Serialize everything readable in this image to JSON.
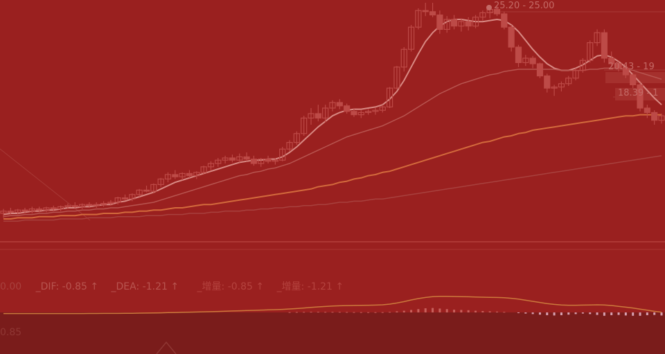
{
  "colors": {
    "background": "#9a201f",
    "bottom_panel": "#7a1c1b",
    "candle": "#bd4a47",
    "ma5": "#d98a84",
    "ma10": "#b85550",
    "ma20": "#d36a3c",
    "ma60": "#a8413e",
    "label": "#c46a66",
    "macd_bar_up": "#c7605c",
    "macd_bar_down": "#d6a0b0"
  },
  "price_labels": {
    "high": "25.20 - 25.00",
    "mid": "20.43 - 19",
    "low": "18.39 - 1"
  },
  "indicator_bar": {
    "prefix": "0.00",
    "dif_label": "_DIF: -0.85",
    "dea_label": "_DEA: -1.21",
    "cn1_label": "_增量: -0.85",
    "cn2_label": "_增量: -1.21",
    "arrow": "↑"
  },
  "bottom_panel": {
    "value": "0.85"
  },
  "chart_data": {
    "type": "line",
    "title": "",
    "xlabel": "",
    "ylabel": "",
    "ylim": [
      4.5,
      26
    ],
    "grid": false,
    "candles": [
      {
        "o": 7.0,
        "h": 7.4,
        "l": 6.6,
        "c": 7.2
      },
      {
        "o": 7.2,
        "h": 7.5,
        "l": 6.9,
        "c": 7.1
      },
      {
        "o": 7.1,
        "h": 7.4,
        "l": 6.9,
        "c": 7.3
      },
      {
        "o": 7.3,
        "h": 7.5,
        "l": 7.0,
        "c": 7.2
      },
      {
        "o": 7.2,
        "h": 7.6,
        "l": 7.0,
        "c": 7.4
      },
      {
        "o": 7.4,
        "h": 7.6,
        "l": 7.1,
        "c": 7.3
      },
      {
        "o": 7.3,
        "h": 7.6,
        "l": 7.1,
        "c": 7.5
      },
      {
        "o": 7.5,
        "h": 7.7,
        "l": 7.2,
        "c": 7.4
      },
      {
        "o": 7.4,
        "h": 7.7,
        "l": 7.2,
        "c": 7.6
      },
      {
        "o": 7.6,
        "h": 7.9,
        "l": 7.4,
        "c": 7.7
      },
      {
        "o": 7.7,
        "h": 8.0,
        "l": 7.4,
        "c": 7.6
      },
      {
        "o": 7.6,
        "h": 7.9,
        "l": 7.4,
        "c": 7.8
      },
      {
        "o": 7.8,
        "h": 8.0,
        "l": 7.5,
        "c": 7.7
      },
      {
        "o": 7.7,
        "h": 8.0,
        "l": 7.5,
        "c": 7.8
      },
      {
        "o": 7.8,
        "h": 8.1,
        "l": 7.6,
        "c": 7.9
      },
      {
        "o": 7.9,
        "h": 8.2,
        "l": 7.7,
        "c": 8.0
      },
      {
        "o": 8.0,
        "h": 8.5,
        "l": 7.8,
        "c": 8.4
      },
      {
        "o": 8.4,
        "h": 8.7,
        "l": 8.2,
        "c": 8.3
      },
      {
        "o": 8.3,
        "h": 8.8,
        "l": 8.1,
        "c": 8.7
      },
      {
        "o": 8.7,
        "h": 9.2,
        "l": 8.5,
        "c": 9.1
      },
      {
        "o": 9.1,
        "h": 9.5,
        "l": 8.9,
        "c": 9.0
      },
      {
        "o": 9.0,
        "h": 9.7,
        "l": 8.8,
        "c": 9.6
      },
      {
        "o": 9.6,
        "h": 10.2,
        "l": 9.4,
        "c": 10.1
      },
      {
        "o": 10.1,
        "h": 10.7,
        "l": 9.8,
        "c": 10.5
      },
      {
        "o": 10.5,
        "h": 10.9,
        "l": 10.1,
        "c": 10.3
      },
      {
        "o": 10.3,
        "h": 10.7,
        "l": 10.0,
        "c": 10.6
      },
      {
        "o": 10.6,
        "h": 10.9,
        "l": 10.2,
        "c": 10.4
      },
      {
        "o": 10.4,
        "h": 10.8,
        "l": 10.1,
        "c": 10.7
      },
      {
        "o": 10.7,
        "h": 11.3,
        "l": 10.5,
        "c": 11.2
      },
      {
        "o": 11.2,
        "h": 11.7,
        "l": 10.9,
        "c": 11.5
      },
      {
        "o": 11.5,
        "h": 12.0,
        "l": 11.2,
        "c": 11.8
      },
      {
        "o": 11.8,
        "h": 12.2,
        "l": 11.5,
        "c": 12.0
      },
      {
        "o": 12.0,
        "h": 12.3,
        "l": 11.6,
        "c": 11.8
      },
      {
        "o": 11.8,
        "h": 12.4,
        "l": 11.6,
        "c": 12.1
      },
      {
        "o": 12.1,
        "h": 12.5,
        "l": 11.7,
        "c": 11.9
      },
      {
        "o": 11.9,
        "h": 12.2,
        "l": 11.3,
        "c": 11.5
      },
      {
        "o": 11.5,
        "h": 12.0,
        "l": 11.2,
        "c": 11.9
      },
      {
        "o": 11.9,
        "h": 12.2,
        "l": 11.5,
        "c": 11.7
      },
      {
        "o": 11.7,
        "h": 12.0,
        "l": 11.4,
        "c": 11.8
      },
      {
        "o": 11.8,
        "h": 13.0,
        "l": 11.7,
        "c": 12.8
      },
      {
        "o": 12.8,
        "h": 13.6,
        "l": 12.6,
        "c": 13.4
      },
      {
        "o": 13.4,
        "h": 14.4,
        "l": 13.2,
        "c": 14.2
      },
      {
        "o": 14.2,
        "h": 15.8,
        "l": 14.0,
        "c": 15.6
      },
      {
        "o": 15.6,
        "h": 16.5,
        "l": 15.0,
        "c": 16.0
      },
      {
        "o": 16.0,
        "h": 16.8,
        "l": 15.3,
        "c": 15.6
      },
      {
        "o": 15.6,
        "h": 16.8,
        "l": 15.2,
        "c": 16.5
      },
      {
        "o": 16.5,
        "h": 17.2,
        "l": 16.2,
        "c": 17.0
      },
      {
        "o": 17.0,
        "h": 17.3,
        "l": 16.4,
        "c": 16.7
      },
      {
        "o": 16.7,
        "h": 16.9,
        "l": 16.0,
        "c": 16.2
      },
      {
        "o": 16.2,
        "h": 16.5,
        "l": 15.7,
        "c": 15.9
      },
      {
        "o": 15.9,
        "h": 16.3,
        "l": 15.6,
        "c": 16.1
      },
      {
        "o": 16.1,
        "h": 16.4,
        "l": 15.9,
        "c": 16.2
      },
      {
        "o": 16.2,
        "h": 16.5,
        "l": 15.9,
        "c": 16.3
      },
      {
        "o": 16.3,
        "h": 16.8,
        "l": 16.1,
        "c": 16.6
      },
      {
        "o": 16.6,
        "h": 18.4,
        "l": 16.5,
        "c": 18.3
      },
      {
        "o": 18.3,
        "h": 20.3,
        "l": 18.2,
        "c": 20.2
      },
      {
        "o": 20.2,
        "h": 22.0,
        "l": 19.8,
        "c": 21.8
      },
      {
        "o": 21.8,
        "h": 24.0,
        "l": 21.6,
        "c": 23.8
      },
      {
        "o": 23.8,
        "h": 25.5,
        "l": 23.6,
        "c": 25.3
      },
      {
        "o": 25.3,
        "h": 26.0,
        "l": 24.8,
        "c": 25.2
      },
      {
        "o": 25.2,
        "h": 26.0,
        "l": 24.7,
        "c": 24.9
      },
      {
        "o": 24.9,
        "h": 25.3,
        "l": 23.2,
        "c": 23.6
      },
      {
        "o": 23.6,
        "h": 24.8,
        "l": 23.3,
        "c": 24.5
      },
      {
        "o": 24.5,
        "h": 24.9,
        "l": 23.6,
        "c": 23.9
      },
      {
        "o": 23.9,
        "h": 24.6,
        "l": 23.4,
        "c": 24.3
      },
      {
        "o": 24.3,
        "h": 24.7,
        "l": 23.5,
        "c": 23.9
      },
      {
        "o": 23.9,
        "h": 24.9,
        "l": 23.7,
        "c": 24.7
      },
      {
        "o": 24.7,
        "h": 25.3,
        "l": 24.4,
        "c": 25.1
      },
      {
        "o": 25.1,
        "h": 25.6,
        "l": 24.6,
        "c": 25.4
      },
      {
        "o": 25.4,
        "h": 25.8,
        "l": 24.8,
        "c": 25.0
      },
      {
        "o": 25.0,
        "h": 25.2,
        "l": 23.6,
        "c": 23.8
      },
      {
        "o": 23.8,
        "h": 24.0,
        "l": 21.6,
        "c": 22.0
      },
      {
        "o": 22.0,
        "h": 22.2,
        "l": 20.2,
        "c": 20.6
      },
      {
        "o": 20.6,
        "h": 21.3,
        "l": 20.3,
        "c": 21.0
      },
      {
        "o": 21.0,
        "h": 21.2,
        "l": 20.1,
        "c": 20.5
      },
      {
        "o": 20.5,
        "h": 20.6,
        "l": 19.2,
        "c": 19.4
      },
      {
        "o": 19.4,
        "h": 19.6,
        "l": 17.9,
        "c": 18.3
      },
      {
        "o": 18.3,
        "h": 18.6,
        "l": 17.6,
        "c": 18.4
      },
      {
        "o": 18.4,
        "h": 18.9,
        "l": 18.0,
        "c": 18.7
      },
      {
        "o": 18.7,
        "h": 19.4,
        "l": 18.5,
        "c": 19.2
      },
      {
        "o": 19.2,
        "h": 20.1,
        "l": 19.0,
        "c": 19.9
      },
      {
        "o": 19.9,
        "h": 21.0,
        "l": 19.7,
        "c": 20.8
      },
      {
        "o": 20.8,
        "h": 22.6,
        "l": 20.6,
        "c": 22.4
      },
      {
        "o": 22.4,
        "h": 23.6,
        "l": 22.1,
        "c": 23.3
      },
      {
        "o": 23.3,
        "h": 23.6,
        "l": 20.6,
        "c": 21.0
      },
      {
        "o": 21.0,
        "h": 21.6,
        "l": 20.2,
        "c": 20.5
      },
      {
        "o": 20.5,
        "h": 20.7,
        "l": 19.8,
        "c": 20.1
      },
      {
        "o": 20.1,
        "h": 20.4,
        "l": 19.2,
        "c": 19.5
      },
      {
        "o": 19.5,
        "h": 19.6,
        "l": 18.3,
        "c": 18.6
      },
      {
        "o": 18.6,
        "h": 18.8,
        "l": 16.2,
        "c": 16.5
      },
      {
        "o": 16.5,
        "h": 16.8,
        "l": 15.6,
        "c": 16.1
      },
      {
        "o": 16.1,
        "h": 16.3,
        "l": 15.0,
        "c": 15.4
      },
      {
        "o": 15.4,
        "h": 16.0,
        "l": 15.1,
        "c": 15.8
      }
    ],
    "series": [
      {
        "values": [
          6.9,
          7.0,
          7.0,
          7.1,
          7.2,
          7.2,
          7.3,
          7.3,
          7.4,
          7.5,
          7.5,
          7.6,
          7.6,
          7.7,
          7.8,
          7.8,
          8.0,
          8.1,
          8.3,
          8.5,
          8.7,
          8.9,
          9.2,
          9.5,
          9.8,
          10.0,
          10.2,
          10.4,
          10.6,
          10.8,
          11.0,
          11.2,
          11.4,
          11.6,
          11.7,
          11.8,
          11.8,
          11.9,
          11.9,
          12.1,
          12.5,
          13.0,
          13.6,
          14.2,
          14.8,
          15.3,
          15.8,
          16.1,
          16.3,
          16.4,
          16.4,
          16.5,
          16.6,
          16.8,
          17.3,
          18.0,
          19.0,
          20.2,
          21.4,
          22.5,
          23.3,
          23.9,
          24.3,
          24.5,
          24.5,
          24.4,
          24.3,
          24.3,
          24.4,
          24.5,
          24.4,
          24.0,
          23.4,
          22.6,
          21.8,
          21.1,
          20.5,
          20.1,
          19.9,
          19.9,
          20.1,
          20.4,
          20.8,
          21.2,
          21.3,
          21.1,
          20.7,
          20.2,
          19.5,
          18.8,
          18.1,
          17.4,
          16.8
        ]
      },
      {
        "values": [
          6.7,
          6.8,
          6.8,
          6.9,
          6.9,
          7.0,
          7.0,
          7.1,
          7.1,
          7.2,
          7.2,
          7.3,
          7.3,
          7.4,
          7.4,
          7.5,
          7.5,
          7.6,
          7.7,
          7.8,
          7.9,
          8.0,
          8.2,
          8.4,
          8.6,
          8.8,
          9.0,
          9.2,
          9.4,
          9.6,
          9.8,
          10.0,
          10.2,
          10.4,
          10.5,
          10.7,
          10.8,
          11.0,
          11.1,
          11.3,
          11.5,
          11.8,
          12.1,
          12.4,
          12.7,
          13.0,
          13.3,
          13.6,
          13.9,
          14.1,
          14.3,
          14.5,
          14.7,
          14.9,
          15.2,
          15.5,
          15.8,
          16.2,
          16.6,
          17.0,
          17.4,
          17.8,
          18.1,
          18.4,
          18.7,
          18.9,
          19.1,
          19.3,
          19.5,
          19.6,
          19.8,
          19.9,
          20.0,
          20.0,
          20.0,
          20.0,
          20.0,
          20.0,
          19.9,
          19.9,
          19.9,
          19.9,
          20.0,
          20.0,
          20.1,
          20.1,
          20.1,
          20.0,
          19.9,
          19.7,
          19.5,
          19.3,
          19.1
        ]
      },
      {
        "values": [
          6.5,
          6.5,
          6.6,
          6.6,
          6.6,
          6.7,
          6.7,
          6.7,
          6.8,
          6.8,
          6.8,
          6.9,
          6.9,
          6.9,
          7.0,
          7.0,
          7.0,
          7.1,
          7.1,
          7.2,
          7.2,
          7.3,
          7.3,
          7.4,
          7.5,
          7.5,
          7.6,
          7.7,
          7.8,
          7.8,
          7.9,
          8.0,
          8.1,
          8.2,
          8.3,
          8.4,
          8.5,
          8.6,
          8.7,
          8.8,
          8.9,
          9.0,
          9.1,
          9.2,
          9.4,
          9.5,
          9.6,
          9.8,
          9.9,
          10.1,
          10.2,
          10.4,
          10.5,
          10.7,
          10.8,
          11.0,
          11.2,
          11.4,
          11.6,
          11.8,
          12.0,
          12.2,
          12.4,
          12.6,
          12.8,
          13.0,
          13.2,
          13.4,
          13.5,
          13.7,
          13.9,
          14.0,
          14.2,
          14.3,
          14.5,
          14.6,
          14.7,
          14.8,
          14.9,
          15.0,
          15.1,
          15.2,
          15.3,
          15.4,
          15.5,
          15.6,
          15.7,
          15.8,
          15.8,
          15.9,
          15.9,
          15.9,
          15.9
        ]
      },
      {
        "values": [
          6.3,
          6.3,
          6.3,
          6.4,
          6.4,
          6.4,
          6.4,
          6.4,
          6.5,
          6.5,
          6.5,
          6.5,
          6.6,
          6.6,
          6.6,
          6.6,
          6.7,
          6.7,
          6.7,
          6.7,
          6.8,
          6.8,
          6.8,
          6.9,
          6.9,
          6.9,
          7.0,
          7.0,
          7.0,
          7.1,
          7.1,
          7.2,
          7.2,
          7.2,
          7.3,
          7.3,
          7.4,
          7.4,
          7.5,
          7.5,
          7.6,
          7.6,
          7.7,
          7.7,
          7.8,
          7.8,
          7.9,
          8.0,
          8.0,
          8.1,
          8.1,
          8.2,
          8.3,
          8.3,
          8.4,
          8.5,
          8.6,
          8.7,
          8.8,
          8.9,
          9.0,
          9.1,
          9.2,
          9.3,
          9.4,
          9.5,
          9.6,
          9.7,
          9.8,
          9.9,
          10.0,
          10.1,
          10.2,
          10.3,
          10.4,
          10.5,
          10.6,
          10.7,
          10.8,
          10.9,
          11.0,
          11.1,
          11.2,
          11.3,
          11.4,
          11.5,
          11.6,
          11.7,
          11.8,
          11.9,
          12.0,
          12.1,
          12.2
        ]
      }
    ],
    "macd": {
      "hist": [
        0,
        0,
        0,
        0,
        0,
        0,
        0,
        0,
        0,
        0,
        0,
        0,
        0,
        0,
        0,
        0,
        0,
        0,
        0,
        0,
        0,
        0,
        0,
        0,
        0,
        0,
        0,
        0,
        0,
        0,
        0,
        0,
        0,
        0,
        0,
        0,
        0,
        0,
        0,
        0,
        0.05,
        0.08,
        0.1,
        0.12,
        0.12,
        0.1,
        0.1,
        0.1,
        0.08,
        0.06,
        0.05,
        0.04,
        0.04,
        0.05,
        0.1,
        0.2,
        0.3,
        0.45,
        0.6,
        0.75,
        0.8,
        0.7,
        0.6,
        0.5,
        0.45,
        0.4,
        0.3,
        0.25,
        0.2,
        0.15,
        0.1,
        0,
        -0.1,
        -0.2,
        -0.3,
        -0.4,
        -0.5,
        -0.55,
        -0.5,
        -0.4,
        -0.3,
        -0.2,
        -0.3,
        -0.45,
        -0.6,
        -0.5,
        -0.45,
        -0.55,
        -0.6,
        -0.6,
        -0.5,
        -0.45,
        -0.55
      ],
      "dif": [
        -0.2,
        -0.2,
        -0.2,
        -0.2,
        -0.2,
        -0.2,
        -0.2,
        -0.2,
        -0.2,
        -0.2,
        -0.2,
        -0.2,
        -0.19,
        -0.19,
        -0.18,
        -0.18,
        -0.17,
        -0.16,
        -0.15,
        -0.13,
        -0.11,
        -0.09,
        -0.07,
        -0.04,
        -0.01,
        0.02,
        0.05,
        0.08,
        0.11,
        0.14,
        0.18,
        0.22,
        0.26,
        0.3,
        0.34,
        0.38,
        0.42,
        0.46,
        0.5,
        0.55,
        0.62,
        0.7,
        0.8,
        0.9,
        1.0,
        1.08,
        1.15,
        1.2,
        1.24,
        1.26,
        1.28,
        1.3,
        1.33,
        1.38,
        1.5,
        1.7,
        1.95,
        2.25,
        2.5,
        2.7,
        2.85,
        2.9,
        2.9,
        2.88,
        2.85,
        2.82,
        2.78,
        2.75,
        2.72,
        2.7,
        2.65,
        2.55,
        2.4,
        2.2,
        2.0,
        1.8,
        1.6,
        1.45,
        1.35,
        1.3,
        1.3,
        1.32,
        1.35,
        1.38,
        1.35,
        1.25,
        1.1,
        0.95,
        0.8,
        0.6,
        0.4,
        0.2,
        0.05
      ]
    }
  }
}
